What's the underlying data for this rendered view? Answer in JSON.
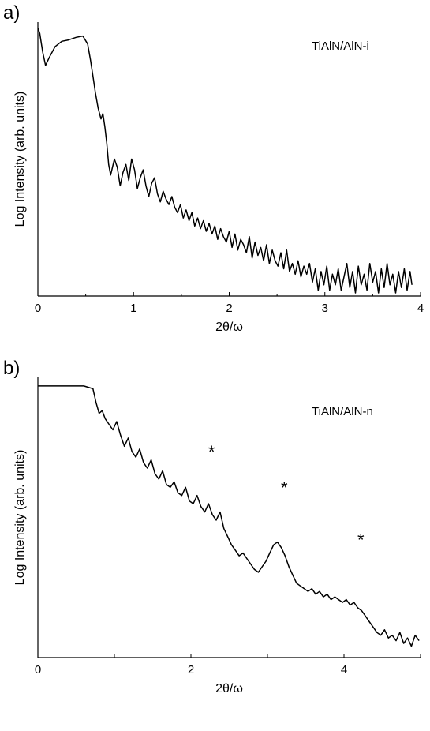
{
  "chart_data": [
    {
      "type": "line",
      "panel_label": "a)",
      "annotation": "TiAlN/AlN-i",
      "xlabel": "2θ/ω",
      "ylabel": "Log Intensity (arb. units)",
      "xlim": [
        0,
        4
      ],
      "ylim": [
        0,
        1
      ],
      "x_ticks": [
        0,
        1,
        2,
        3,
        4
      ],
      "x_tick_labels": [
        "0",
        "1",
        "2",
        "3",
        "4"
      ],
      "y_ticks_labeled": false,
      "grid": false,
      "series": [
        {
          "x": [
            0.0,
            0.02,
            0.05,
            0.08,
            0.12,
            0.18,
            0.25,
            0.32,
            0.4,
            0.47,
            0.52,
            0.55,
            0.58,
            0.6,
            0.63,
            0.66,
            0.68,
            0.7,
            0.72,
            0.74,
            0.76,
            0.78,
            0.8,
            0.83,
            0.86,
            0.89,
            0.92,
            0.95,
            0.98,
            1.01,
            1.04,
            1.07,
            1.1,
            1.13,
            1.16,
            1.19,
            1.22,
            1.25,
            1.28,
            1.31,
            1.34,
            1.37,
            1.4,
            1.43,
            1.46,
            1.49,
            1.52,
            1.55,
            1.58,
            1.61,
            1.64,
            1.67,
            1.7,
            1.73,
            1.76,
            1.79,
            1.82,
            1.85,
            1.88,
            1.91,
            1.94,
            1.97,
            2.0,
            2.03,
            2.06,
            2.09,
            2.12,
            2.15,
            2.18,
            2.21,
            2.24,
            2.27,
            2.3,
            2.33,
            2.36,
            2.39,
            2.42,
            2.45,
            2.48,
            2.51,
            2.54,
            2.57,
            2.6,
            2.63,
            2.66,
            2.69,
            2.72,
            2.75,
            2.78,
            2.81,
            2.84,
            2.87,
            2.9,
            2.93,
            2.96,
            2.99,
            3.02,
            3.05,
            3.08,
            3.11,
            3.14,
            3.17,
            3.2,
            3.23,
            3.26,
            3.29,
            3.32,
            3.35,
            3.38,
            3.41,
            3.44,
            3.47,
            3.5,
            3.53,
            3.56,
            3.59,
            3.62,
            3.65,
            3.68,
            3.71,
            3.74,
            3.77,
            3.8,
            3.83,
            3.86,
            3.89,
            3.91
          ],
          "y": [
            0.99,
            0.97,
            0.9,
            0.85,
            0.88,
            0.92,
            0.94,
            0.945,
            0.955,
            0.96,
            0.93,
            0.87,
            0.8,
            0.75,
            0.69,
            0.65,
            0.67,
            0.62,
            0.56,
            0.48,
            0.44,
            0.47,
            0.5,
            0.47,
            0.4,
            0.45,
            0.48,
            0.42,
            0.5,
            0.46,
            0.39,
            0.43,
            0.46,
            0.4,
            0.36,
            0.41,
            0.43,
            0.37,
            0.34,
            0.38,
            0.35,
            0.33,
            0.36,
            0.32,
            0.3,
            0.33,
            0.28,
            0.31,
            0.27,
            0.3,
            0.25,
            0.28,
            0.24,
            0.27,
            0.23,
            0.26,
            0.22,
            0.25,
            0.2,
            0.24,
            0.21,
            0.19,
            0.23,
            0.17,
            0.22,
            0.16,
            0.2,
            0.18,
            0.15,
            0.21,
            0.13,
            0.19,
            0.14,
            0.17,
            0.12,
            0.18,
            0.11,
            0.16,
            0.12,
            0.1,
            0.15,
            0.09,
            0.16,
            0.08,
            0.11,
            0.07,
            0.12,
            0.06,
            0.1,
            0.07,
            0.11,
            0.04,
            0.09,
            0.01,
            0.08,
            0.03,
            0.1,
            0.01,
            0.07,
            0.03,
            0.09,
            0.01,
            0.06,
            0.11,
            0.02,
            0.08,
            0.0,
            0.1,
            0.03,
            0.07,
            0.01,
            0.11,
            0.04,
            0.08,
            0.0,
            0.09,
            0.02,
            0.11,
            0.03,
            0.07,
            0.0,
            0.08,
            0.02,
            0.09,
            0.01,
            0.08,
            0.03
          ]
        }
      ]
    },
    {
      "type": "line",
      "panel_label": "b)",
      "annotation": "TiAlN/AlN-n",
      "xlabel": "2θ/ω",
      "ylabel": "Log Intensity (arb. units)",
      "xlim": [
        0,
        5
      ],
      "ylim": [
        0,
        1
      ],
      "x_ticks": [
        0,
        1,
        2,
        3,
        4,
        5
      ],
      "x_tick_labels": [
        "0",
        "",
        "2",
        "",
        "4",
        ""
      ],
      "y_ticks_labeled": false,
      "grid": false,
      "markers": [
        {
          "x": 2.27,
          "y": 0.74,
          "label": "*"
        },
        {
          "x": 3.22,
          "y": 0.61,
          "label": "*"
        },
        {
          "x": 4.22,
          "y": 0.42,
          "label": "*"
        }
      ],
      "series": [
        {
          "x": [
            0.0,
            0.3,
            0.6,
            0.72,
            0.76,
            0.8,
            0.84,
            0.88,
            0.93,
            0.98,
            1.03,
            1.08,
            1.13,
            1.18,
            1.23,
            1.28,
            1.33,
            1.38,
            1.43,
            1.48,
            1.53,
            1.58,
            1.63,
            1.68,
            1.73,
            1.78,
            1.83,
            1.88,
            1.93,
            1.98,
            2.03,
            2.08,
            2.13,
            2.18,
            2.23,
            2.28,
            2.33,
            2.38,
            2.43,
            2.48,
            2.53,
            2.58,
            2.63,
            2.68,
            2.73,
            2.78,
            2.83,
            2.88,
            2.93,
            2.98,
            3.03,
            3.08,
            3.13,
            3.18,
            3.23,
            3.28,
            3.33,
            3.38,
            3.43,
            3.48,
            3.53,
            3.58,
            3.63,
            3.68,
            3.73,
            3.78,
            3.83,
            3.88,
            3.93,
            3.98,
            4.03,
            4.08,
            4.13,
            4.18,
            4.23,
            4.28,
            4.33,
            4.38,
            4.43,
            4.48,
            4.53,
            4.58,
            4.63,
            4.68,
            4.73,
            4.78,
            4.83,
            4.88,
            4.93,
            4.98
          ],
          "y": [
            0.98,
            0.98,
            0.98,
            0.97,
            0.92,
            0.88,
            0.89,
            0.86,
            0.84,
            0.82,
            0.85,
            0.8,
            0.76,
            0.79,
            0.74,
            0.72,
            0.75,
            0.7,
            0.68,
            0.71,
            0.66,
            0.64,
            0.67,
            0.62,
            0.61,
            0.63,
            0.59,
            0.58,
            0.61,
            0.56,
            0.55,
            0.58,
            0.54,
            0.52,
            0.55,
            0.51,
            0.49,
            0.52,
            0.46,
            0.43,
            0.4,
            0.38,
            0.36,
            0.37,
            0.35,
            0.33,
            0.31,
            0.3,
            0.32,
            0.34,
            0.37,
            0.4,
            0.41,
            0.39,
            0.36,
            0.32,
            0.29,
            0.26,
            0.25,
            0.24,
            0.23,
            0.24,
            0.22,
            0.23,
            0.21,
            0.22,
            0.2,
            0.21,
            0.2,
            0.19,
            0.2,
            0.18,
            0.19,
            0.17,
            0.16,
            0.14,
            0.12,
            0.1,
            0.08,
            0.07,
            0.09,
            0.06,
            0.07,
            0.05,
            0.08,
            0.04,
            0.06,
            0.03,
            0.07,
            0.05
          ]
        }
      ]
    }
  ]
}
